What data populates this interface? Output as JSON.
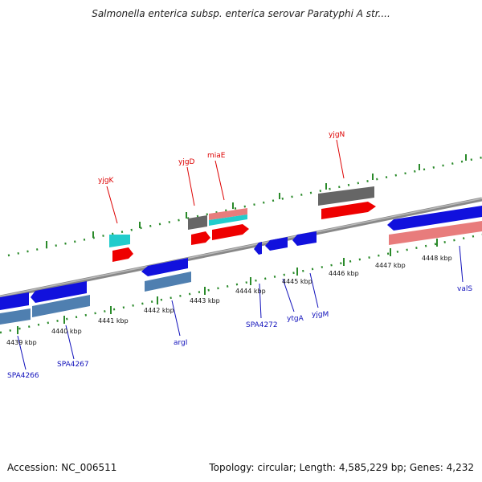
{
  "title": "Salmonella enterica subsp. enterica serovar Paratyphi A str....",
  "footer": {
    "accession": "Accession: NC_006511",
    "summary": "Topology: circular; Length: 4,585,229 bp; Genes: 4,232"
  },
  "colors": {
    "forward_red": "#ee0000",
    "forward_pink": "#e87c7c",
    "forward_grey": "#666666",
    "forward_cyan": "#22cccc",
    "reverse_blue": "#1111dd",
    "reverse_steel": "#4f7fb0",
    "tick_green": "#2a8a2a",
    "backbone": "#888888",
    "label_red": "#dd0000",
    "label_blue": "#1111bb"
  },
  "scale_labels": [
    "4439 kbp",
    "4440 kbp",
    "4441 kbp",
    "4442 kbp",
    "4443 kbp",
    "4444 kbp",
    "4445 kbp",
    "4446 kbp",
    "4447 kbp",
    "4448 kbp"
  ],
  "gene_labels_forward": [
    "yjgK",
    "yjgD",
    "miaE",
    "yjgN"
  ],
  "gene_labels_reverse": [
    "SPA4266",
    "SPA4267",
    "argI",
    "SPA4272",
    "ytgA",
    "yjgM",
    "valS"
  ]
}
